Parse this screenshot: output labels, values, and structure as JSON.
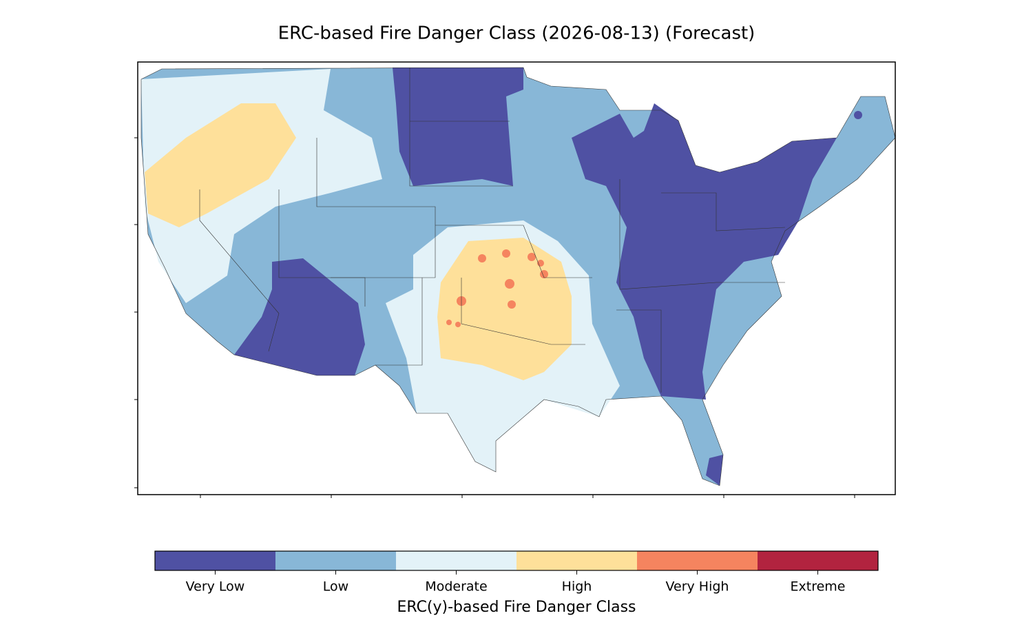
{
  "title": "ERC-based Fire Danger Class (2026-08-13) (Forecast)",
  "colorbar": {
    "label": "ERC(y)-based Fire Danger Class",
    "classes": [
      {
        "label": "Very Low",
        "color": "#4f51a3"
      },
      {
        "label": "Low",
        "color": "#88b7d7"
      },
      {
        "label": "Moderate",
        "color": "#e3f2f8"
      },
      {
        "label": "High",
        "color": "#fee09a"
      },
      {
        "label": "Very High",
        "color": "#f5845f"
      },
      {
        "label": "Extreme",
        "color": "#b2233f"
      }
    ]
  }
}
